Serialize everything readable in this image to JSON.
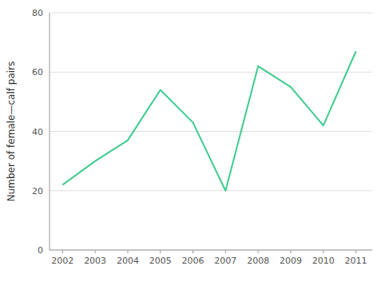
{
  "chart_data": {
    "type": "line",
    "ylabel": "Number of female—calf pairs",
    "x": [
      2002,
      2003,
      2004,
      2005,
      2006,
      2007,
      2008,
      2009,
      2010,
      2011
    ],
    "values": [
      22,
      30,
      37,
      54,
      43,
      20,
      62,
      55,
      42,
      67
    ],
    "color": "#3dcc8e",
    "xlim": [
      2001.6,
      2011.5
    ],
    "xticks": [
      2002,
      2003,
      2004,
      2005,
      2006,
      2007,
      2008,
      2009,
      2010,
      2011
    ],
    "ylim": [
      0,
      80
    ],
    "yticks": [
      0,
      20,
      40,
      60,
      80
    ],
    "grid": true
  }
}
